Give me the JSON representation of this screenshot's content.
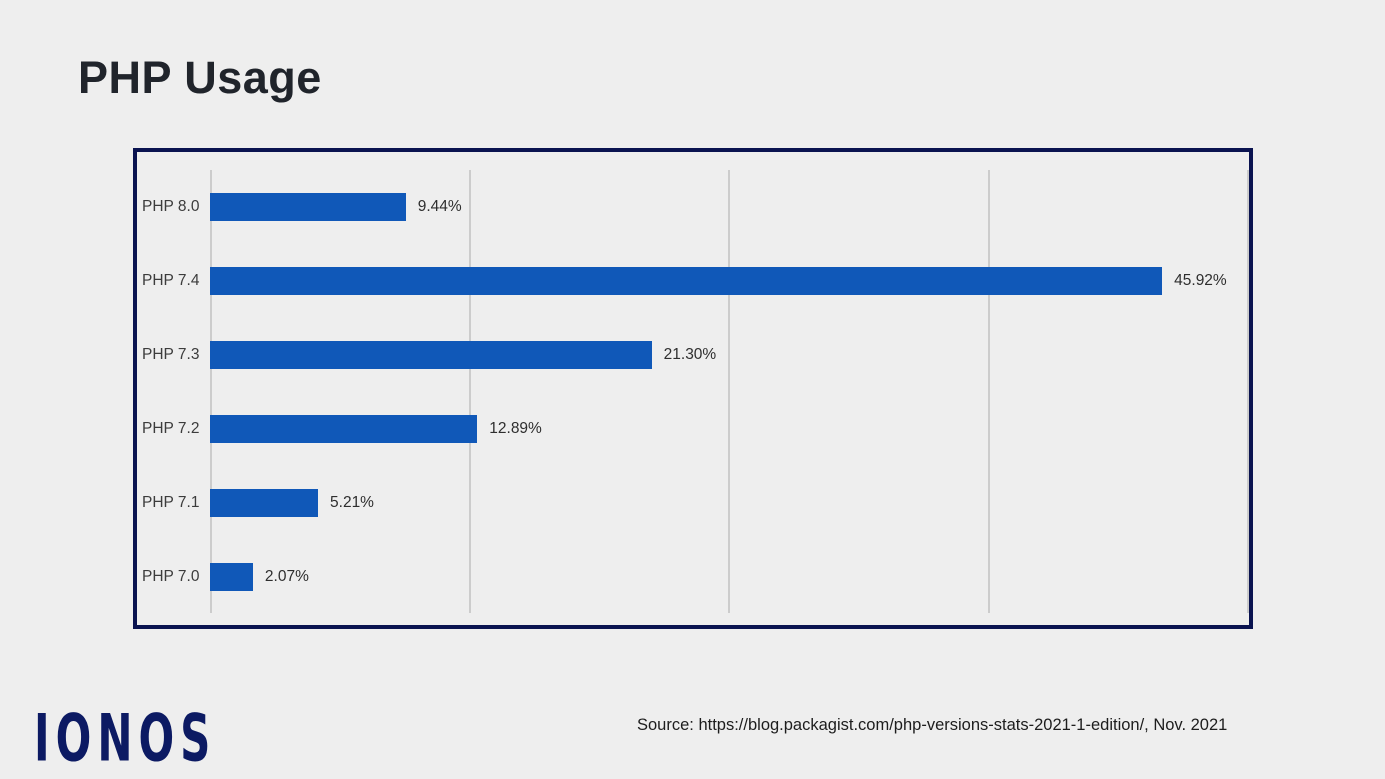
{
  "title": "PHP Usage",
  "colors": {
    "page_background": "#eeeeee",
    "chart_background": "#eeeeee",
    "chart_border": "#0a1350",
    "bar": "#1058b8",
    "gridline": "#cccccc",
    "title_text": "#20242b",
    "logo": "#0c1a63"
  },
  "chart_data": {
    "type": "bar",
    "orientation": "horizontal",
    "title": "PHP Usage",
    "categories": [
      "PHP 8.0",
      "PHP 7.4",
      "PHP 7.3",
      "PHP 7.2",
      "PHP 7.1",
      "PHP 7.0"
    ],
    "values": [
      9.44,
      45.92,
      21.3,
      12.89,
      5.21,
      2.07
    ],
    "value_labels": [
      "9.44%",
      "45.92%",
      "21.30%",
      "12.89%",
      "5.21%",
      "2.07%"
    ],
    "xlabel": "",
    "ylabel": "",
    "xlim": [
      0,
      50
    ],
    "gridline_positions_pct": [
      0,
      12.5,
      25,
      37.5,
      50
    ],
    "grid": "vertical",
    "legend": "none",
    "axis_tick_labels_shown": false
  },
  "footer": {
    "logo_text": "IONOS",
    "source_text": "Source: https://blog.packagist.com/php-versions-stats-2021-1-edition/, Nov. 2021"
  }
}
